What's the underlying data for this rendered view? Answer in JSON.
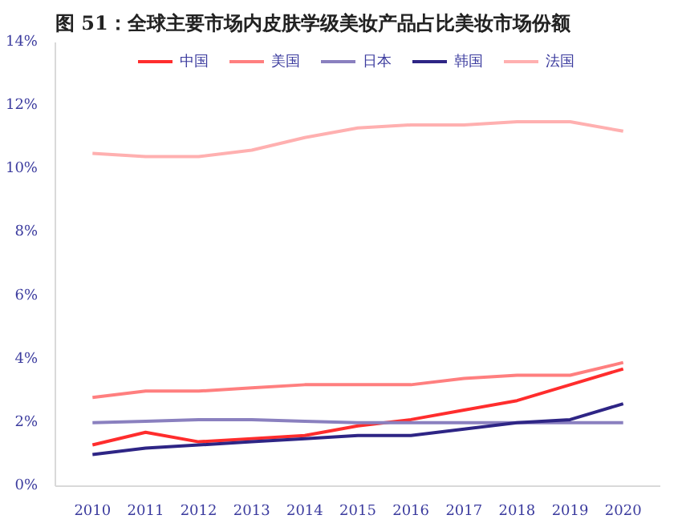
{
  "chart_data": {
    "type": "line",
    "title": "图 51：全球主要市场内皮肤学级美妆产品占比美妆市场份额",
    "categories": [
      "2010",
      "2011",
      "2012",
      "2013",
      "2014",
      "2015",
      "2016",
      "2017",
      "2018",
      "2019",
      "2020"
    ],
    "series": [
      {
        "name": "中国",
        "color": "#ff2d2d",
        "values": [
          1.3,
          1.7,
          1.4,
          1.5,
          1.6,
          1.9,
          2.1,
          2.4,
          2.7,
          3.2,
          3.7
        ]
      },
      {
        "name": "美国",
        "color": "#ff7f7f",
        "values": [
          2.8,
          3.0,
          3.0,
          3.1,
          3.2,
          3.2,
          3.2,
          3.4,
          3.5,
          3.5,
          3.9
        ]
      },
      {
        "name": "日本",
        "color": "#8a80bf",
        "values": [
          2.0,
          2.05,
          2.1,
          2.1,
          2.05,
          2.0,
          2.0,
          2.0,
          2.0,
          2.0,
          2.0
        ]
      },
      {
        "name": "韩国",
        "color": "#2e2585",
        "values": [
          1.0,
          1.2,
          1.3,
          1.4,
          1.5,
          1.6,
          1.6,
          1.8,
          2.0,
          2.1,
          2.6
        ]
      },
      {
        "name": "法国",
        "color": "#ffb0b0",
        "values": [
          10.5,
          10.4,
          10.4,
          10.6,
          11.0,
          11.3,
          11.4,
          11.4,
          11.5,
          11.5,
          11.2
        ]
      }
    ],
    "ylim": [
      0,
      14
    ],
    "yticks": [
      {
        "value": 0,
        "label": "0%"
      },
      {
        "value": 2,
        "label": "2%"
      },
      {
        "value": 4,
        "label": "4%"
      },
      {
        "value": 6,
        "label": "6%"
      },
      {
        "value": 8,
        "label": "8%"
      },
      {
        "value": 10,
        "label": "10%"
      },
      {
        "value": 12,
        "label": "12%"
      },
      {
        "value": 14,
        "label": "14%"
      }
    ],
    "legend": "top",
    "grid": false,
    "marker": "none",
    "line_style": "solid"
  }
}
